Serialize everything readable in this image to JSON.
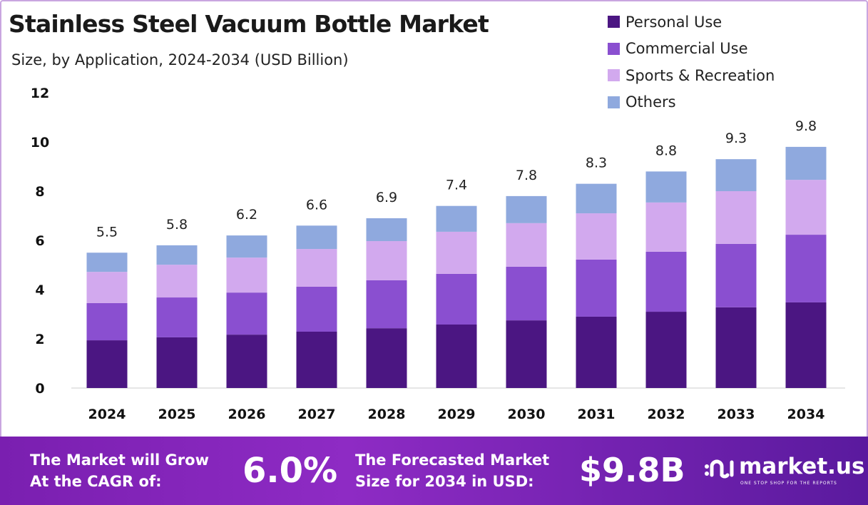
{
  "chart_data": {
    "type": "bar",
    "stacked": true,
    "title": "Stainless Steel Vacuum Bottle Market",
    "subtitle": "Size, by Application, 2024-2034 (USD Billion)",
    "categories": [
      "2024",
      "2025",
      "2026",
      "2027",
      "2028",
      "2029",
      "2030",
      "2031",
      "2032",
      "2033",
      "2034"
    ],
    "series": [
      {
        "name": "Personal Use",
        "color": "#4b1682",
        "values": [
          1.94,
          2.06,
          2.17,
          2.29,
          2.43,
          2.58,
          2.75,
          2.9,
          3.1,
          3.28,
          3.48
        ]
      },
      {
        "name": "Commercial Use",
        "color": "#8a4fd0",
        "values": [
          1.51,
          1.62,
          1.71,
          1.83,
          1.95,
          2.06,
          2.18,
          2.32,
          2.44,
          2.58,
          2.75
        ]
      },
      {
        "name": "Sports & Recreation",
        "color": "#d2a9ee",
        "values": [
          1.27,
          1.33,
          1.42,
          1.53,
          1.59,
          1.71,
          1.77,
          1.88,
          2.0,
          2.14,
          2.23
        ]
      },
      {
        "name": "Others",
        "color": "#8fa9de",
        "values": [
          0.78,
          0.79,
          0.9,
          0.95,
          0.93,
          1.05,
          1.1,
          1.2,
          1.26,
          1.3,
          1.34
        ]
      }
    ],
    "totals": [
      "5.5",
      "5.8",
      "6.2",
      "6.6",
      "6.9",
      "7.4",
      "7.8",
      "8.3",
      "8.8",
      "9.3",
      "9.8"
    ],
    "yticks": [
      "0",
      "2",
      "4",
      "6",
      "8",
      "10",
      "12"
    ],
    "ylim": [
      0,
      12
    ],
    "grid": false,
    "legend": "top-right"
  },
  "banner": {
    "cagr_label": [
      "The Market will Grow",
      "At the CAGR of:"
    ],
    "cagr_value": "6.0%",
    "forecast_label": [
      "The Forecasted Market",
      "Size for 2034 in USD:"
    ],
    "forecast_value": "$9.8B",
    "logo_text": "market.us",
    "logo_tagline": "ONE STOP SHOP FOR THE REPORTS"
  }
}
